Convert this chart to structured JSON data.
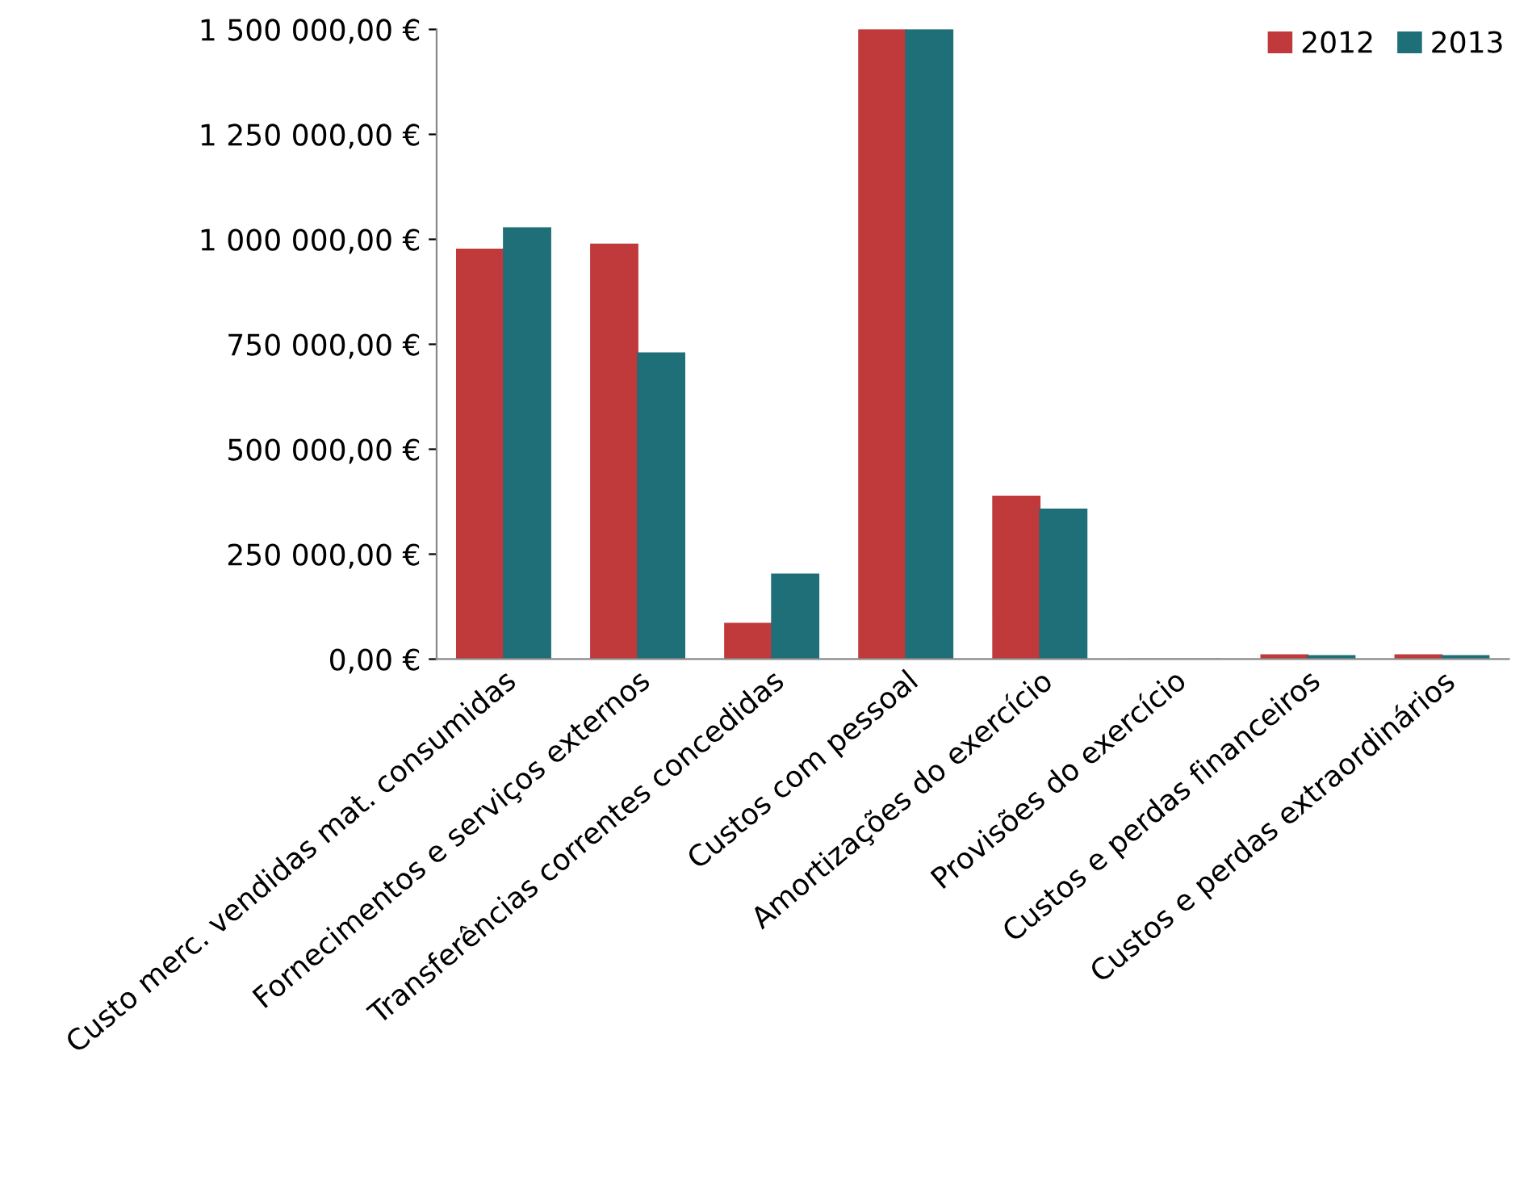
{
  "chart_data": {
    "type": "bar",
    "categories": [
      "Custo merc. vendidas mat. consumidas",
      "Fornecimentos e serviços externos",
      "Transferências correntes concedidas",
      "Custos com pessoal",
      "Amortizações do exercício",
      "Provisões do exercício",
      "Custos e perdas financeiros",
      "Custos e perdas extraordinários"
    ],
    "series": [
      {
        "name": "2012",
        "color": "#c0393b",
        "values": [
          976000,
          988000,
          85000,
          1500000,
          388000,
          0,
          10000,
          10000
        ]
      },
      {
        "name": "2013",
        "color": "#1f6f78",
        "values": [
          1027000,
          729000,
          202000,
          1500000,
          357000,
          0,
          8000,
          8000
        ]
      }
    ],
    "ylim": [
      0,
      1500000
    ],
    "yticks": [
      {
        "value": 0,
        "label": "0,00 €"
      },
      {
        "value": 250000,
        "label": "250 000,00 €"
      },
      {
        "value": 500000,
        "label": "500 000,00 €"
      },
      {
        "value": 750000,
        "label": "750 000,00 €"
      },
      {
        "value": 1000000,
        "label": "1 000 000,00 €"
      },
      {
        "value": 1250000,
        "label": "1 250 000,00 €"
      },
      {
        "value": 1500000,
        "label": "1 500 000,00 €"
      }
    ],
    "grid": false,
    "legend": "top right"
  }
}
